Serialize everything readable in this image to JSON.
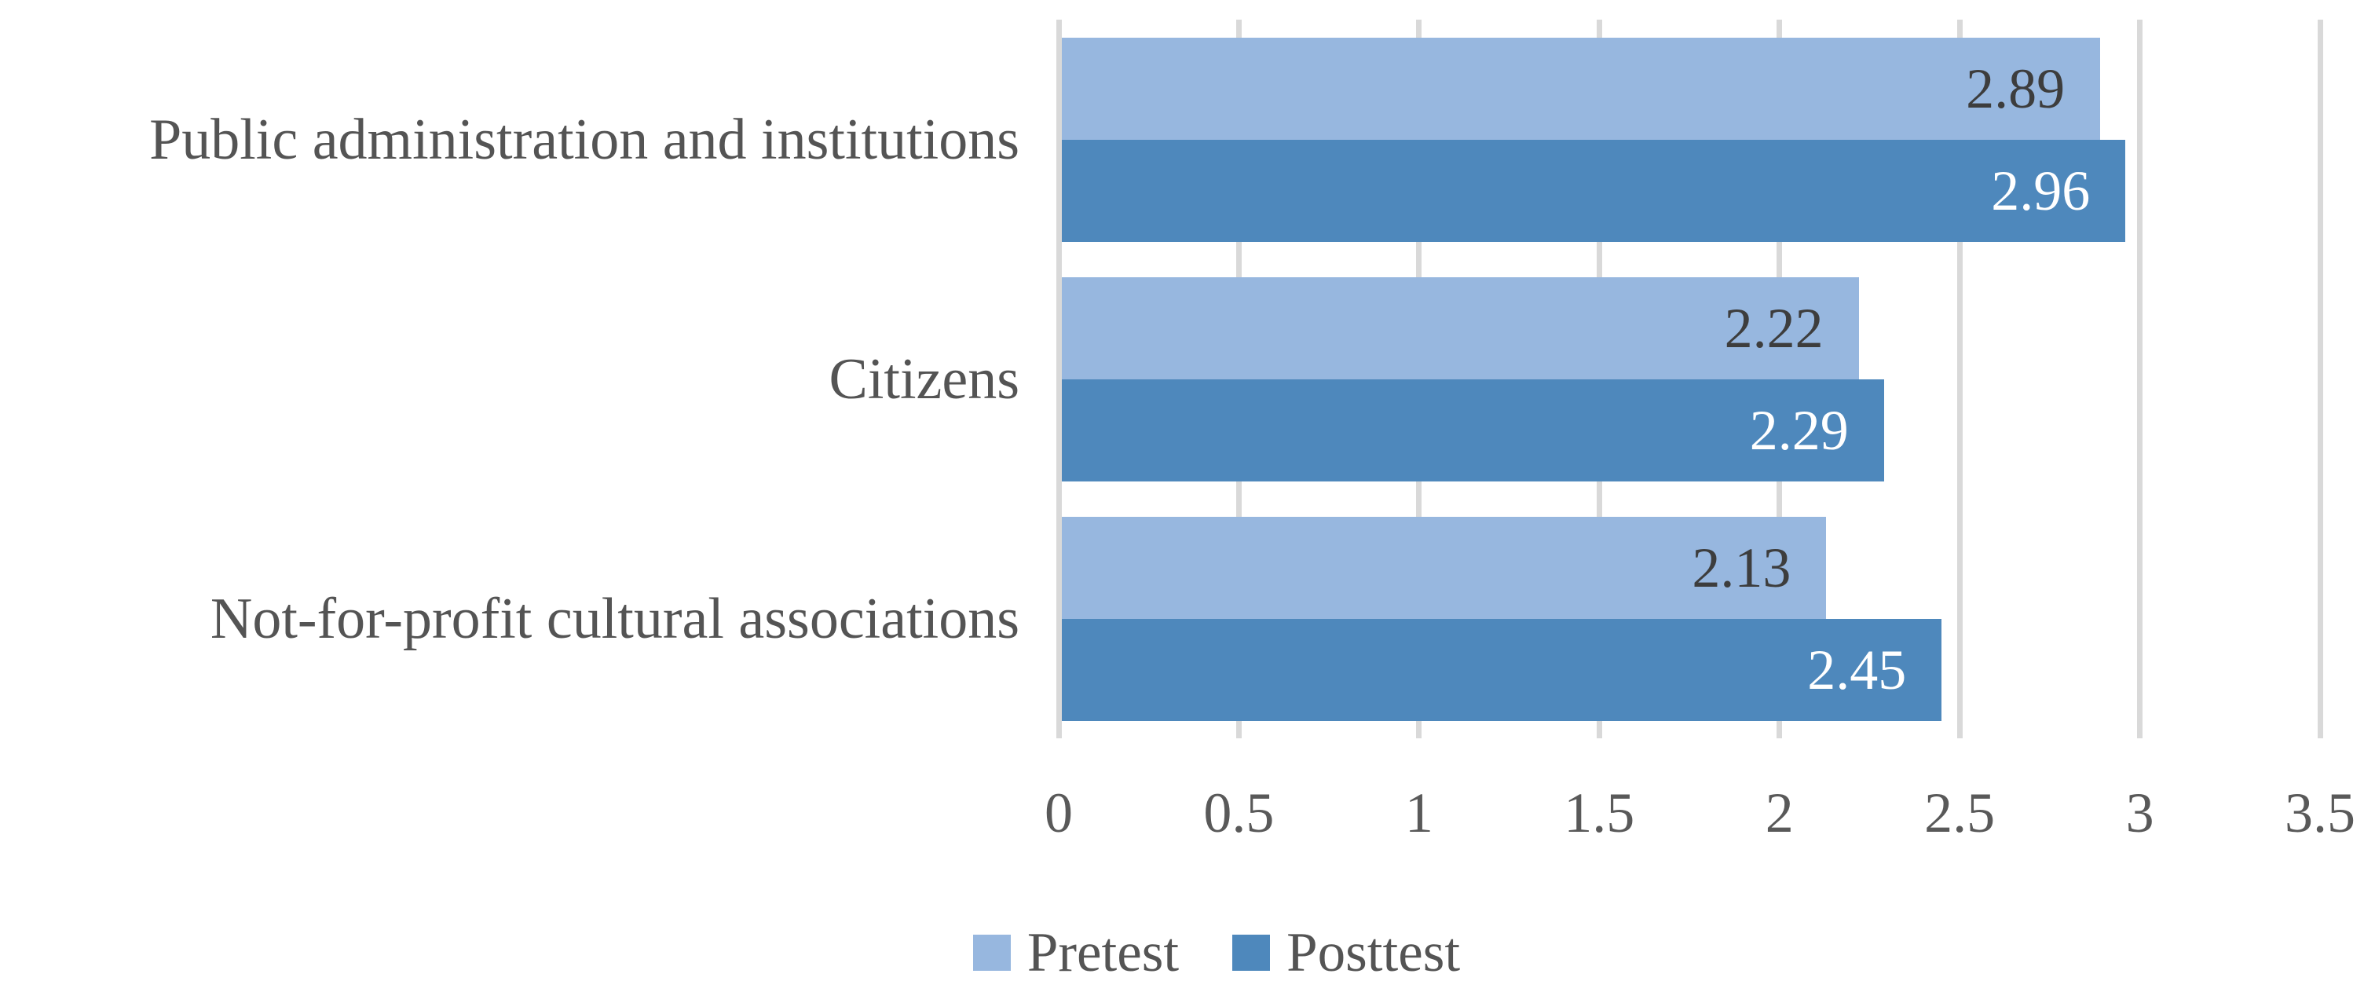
{
  "chart_data": {
    "type": "bar",
    "orientation": "horizontal",
    "title": "",
    "xlabel": "",
    "ylabel": "",
    "categories": [
      "Public administration and institutions",
      "Citizens",
      "Not-for-profit cultural associations"
    ],
    "series": [
      {
        "name": "Pretest",
        "color": "#97b7df",
        "values": [
          2.89,
          2.22,
          2.13
        ],
        "value_labels": [
          "2.89",
          "2.22",
          "2.13"
        ],
        "label_color": "#3d3d3d"
      },
      {
        "name": "Posttest",
        "color": "#4e88bc",
        "values": [
          2.96,
          2.29,
          2.45
        ],
        "value_labels": [
          "2.96",
          "2.29",
          "2.45"
        ],
        "label_color": "#ffffff"
      }
    ],
    "xlim": [
      0,
      3.5
    ],
    "xticks": [
      0,
      0.5,
      1,
      1.5,
      2,
      2.5,
      3,
      3.5
    ],
    "xtick_labels": [
      "0",
      "0.5",
      "1",
      "1.5",
      "2",
      "2.5",
      "3",
      "3.5"
    ],
    "grid": true,
    "gridline_color": "#d9d9d9",
    "legend_position": "bottom",
    "legend_labels": [
      "Pretest",
      "Posttest"
    ]
  }
}
